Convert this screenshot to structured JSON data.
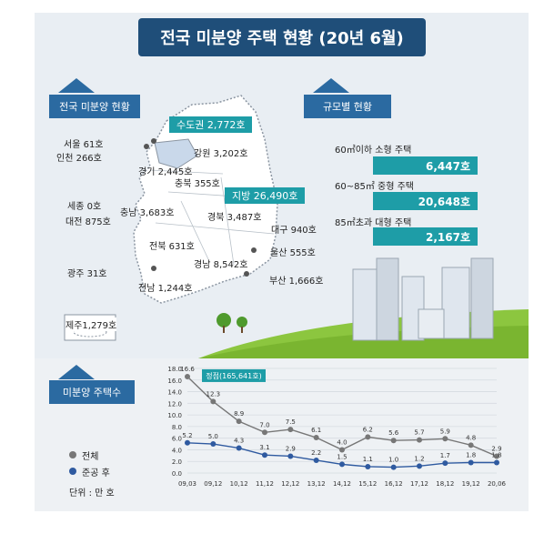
{
  "title": "전국 미분양 주택 현황 (20년 6월)",
  "sections": {
    "national_status": "전국 미분양 현황",
    "by_size": "규모별 현황",
    "unsold_count": "미분양 주택수"
  },
  "regions": {
    "capital_area": "수도권 2,772호",
    "provinces": "지방 26,490호"
  },
  "map_labels": {
    "seoul": "서울  61호",
    "incheon": "인천 266호",
    "gyeonggi": "경기 2,445호",
    "gangwon": "강원 3,202호",
    "chungbuk": "충북 355호",
    "sejong": "세종 0호",
    "chungnam": "충남 3,683호",
    "daejeon": "대전 875호",
    "gyeongbuk": "경북 3,487호",
    "daegu": "대구 940호",
    "jeonbuk": "전북 631호",
    "ulsan": "울산 555호",
    "gwangju": "광주 31호",
    "gyeongnam": "경남 8,542호",
    "busan": "부산 1,666호",
    "jeonnam": "전남 1,244호",
    "jeju": "제주1,279호"
  },
  "size_status": [
    {
      "label": "60㎡이하 소형 주택",
      "value": "6,447호"
    },
    {
      "label": "60~85㎡ 중형 주택",
      "value": "20,648호"
    },
    {
      "label": "85㎡초과 대형 주택",
      "value": "2,167호"
    }
  ],
  "legend": {
    "total": "전체",
    "after_completion": "준공 후",
    "unit": "단위 : 만 호"
  },
  "colors": {
    "title_bg": "#1f4e79",
    "section_blue": "#2b6aa1",
    "teal": "#1e9da7",
    "total_series": "#777777",
    "after_series": "#2f5aa0"
  },
  "chart_data": {
    "type": "line",
    "callout": "정점(165,641호)",
    "categories": [
      "09,03",
      "09,12",
      "10,12",
      "11,12",
      "12,12",
      "13,12",
      "14,12",
      "15,12",
      "16,12",
      "17,12",
      "18,12",
      "19,12",
      "20,06"
    ],
    "ylim": [
      0.0,
      18.0
    ],
    "yticks": [
      "18.0",
      "16.0",
      "14.0",
      "12.0",
      "10.0",
      "8.0",
      "6.0",
      "4.0",
      "2.0",
      "0.0"
    ],
    "series": [
      {
        "name": "전체",
        "values": [
          16.6,
          12.3,
          8.9,
          7.0,
          7.5,
          6.1,
          4.0,
          6.2,
          5.6,
          5.7,
          5.9,
          4.8,
          2.9
        ],
        "labels": [
          "16.6",
          "12.3",
          "8.9",
          "7.0",
          "7.5",
          "6.1",
          "4.0",
          "6.2",
          "5.6",
          "5.7",
          "5.9",
          "4.8",
          "2.9"
        ]
      },
      {
        "name": "준공 후",
        "values": [
          5.2,
          5.0,
          4.3,
          3.1,
          2.9,
          2.2,
          1.5,
          1.1,
          1.0,
          1.2,
          1.7,
          1.8,
          1.8
        ],
        "labels": [
          "5.2",
          "5.0",
          "4.3",
          "3.1",
          "2.9",
          "2.2",
          "1.5",
          "1.1",
          "1.0",
          "1.2",
          "1.7",
          "1.8",
          "1.8"
        ]
      }
    ]
  }
}
